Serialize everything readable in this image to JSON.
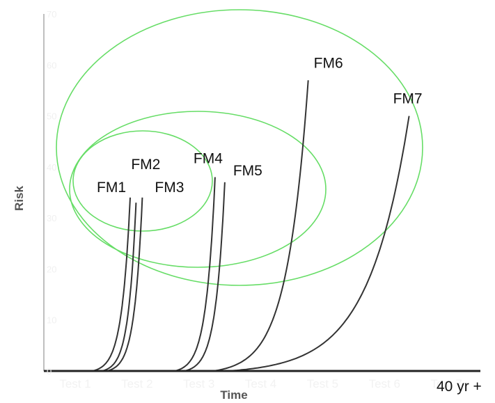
{
  "chart_data": {
    "type": "line",
    "xlabel": "Time",
    "ylabel": "Risk",
    "x_end_label": "40 yr +",
    "y_ticks": [
      "0",
      "10",
      "20",
      "30",
      "40",
      "50",
      "60",
      "70"
    ],
    "x_ticks": [
      "Test 1",
      "Test 2",
      "Test 3",
      "Test 4",
      "Test 5",
      "Test 6",
      "Test 7"
    ],
    "ylim": [
      0,
      70
    ],
    "xlim": [
      0,
      9
    ],
    "grid": false,
    "series": [
      {
        "name": "FM1",
        "onset": 1.0,
        "end_x": 1.78,
        "end_y": 34,
        "color": "#333333"
      },
      {
        "name": "FM2",
        "onset": 1.2,
        "end_x": 1.9,
        "end_y": 33,
        "color": "#333333"
      },
      {
        "name": "FM3",
        "onset": 1.3,
        "end_x": 2.03,
        "end_y": 34,
        "color": "#333333"
      },
      {
        "name": "FM4",
        "onset": 2.7,
        "end_x": 3.53,
        "end_y": 38,
        "color": "#333333"
      },
      {
        "name": "FM5",
        "onset": 2.9,
        "end_x": 3.73,
        "end_y": 37,
        "color": "#333333"
      },
      {
        "name": "FM6",
        "onset": 3.5,
        "end_x": 5.45,
        "end_y": 57,
        "color": "#333333"
      },
      {
        "name": "FM7",
        "onset": 3.8,
        "end_x": 7.53,
        "end_y": 50,
        "color": "#333333"
      }
    ],
    "groups": [
      {
        "members": [
          "FM1",
          "FM2",
          "FM3"
        ],
        "color": "#66dd66"
      },
      {
        "members": [
          "FM1",
          "FM2",
          "FM3",
          "FM4",
          "FM5"
        ],
        "color": "#66dd66"
      },
      {
        "members": [
          "FM1",
          "FM2",
          "FM3",
          "FM4",
          "FM5",
          "FM6"
        ],
        "color": "#66dd66"
      }
    ]
  }
}
